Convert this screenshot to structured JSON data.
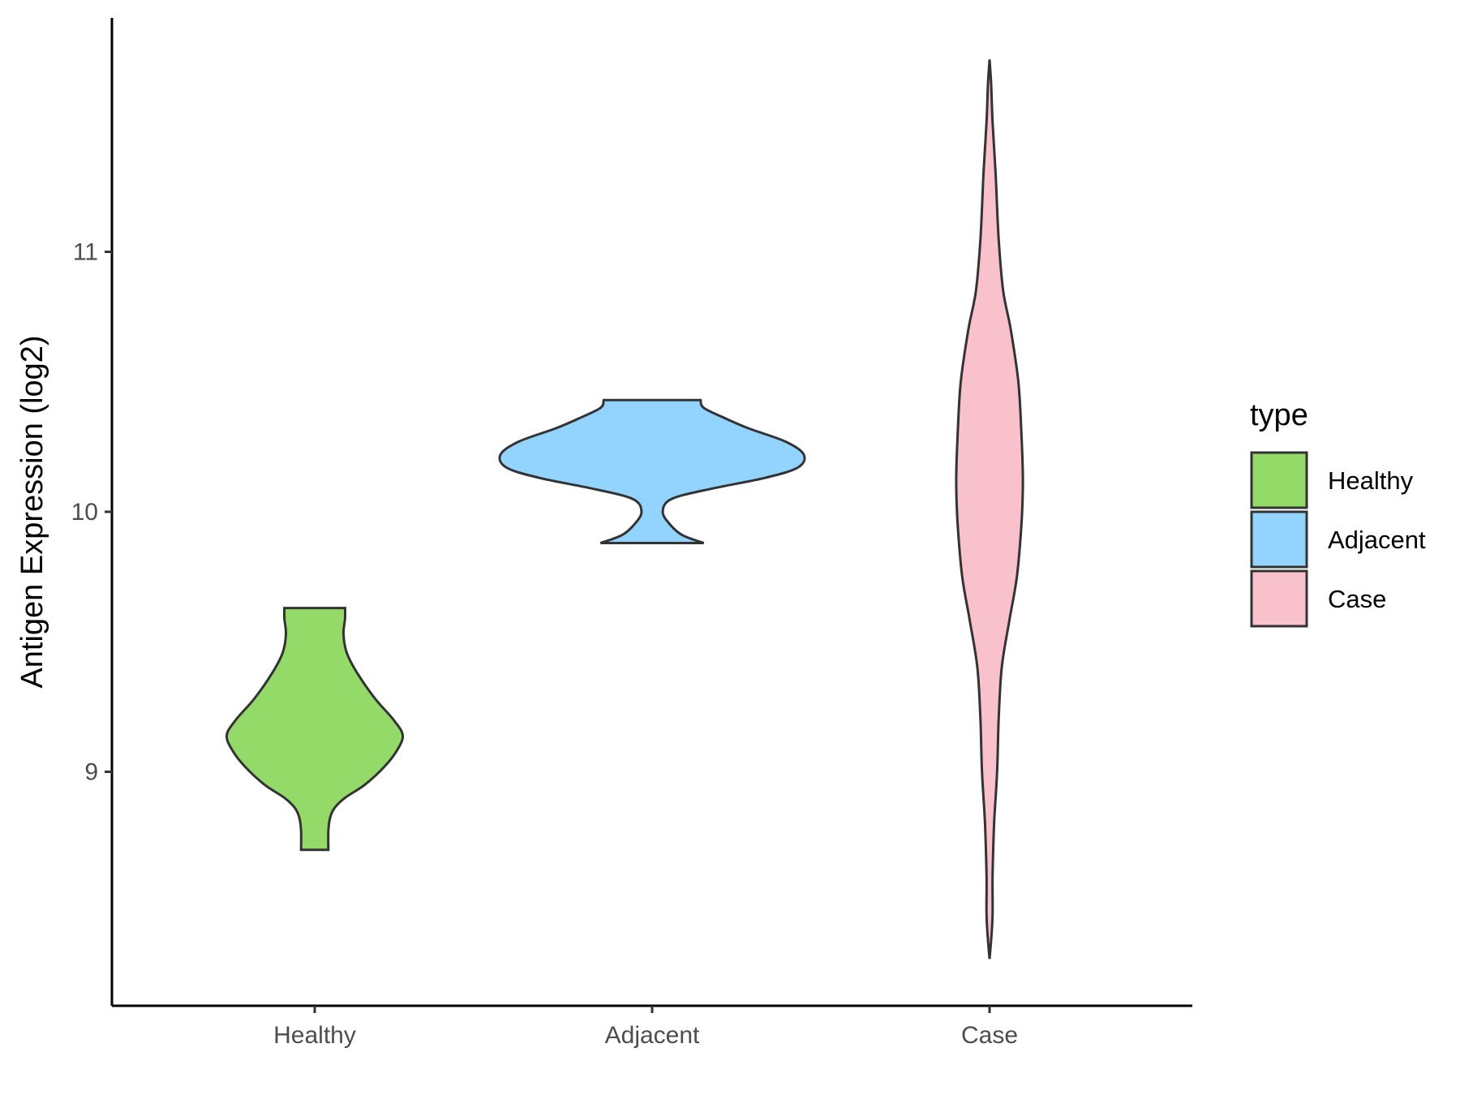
{
  "chart_data": {
    "type": "violin",
    "title": "",
    "xlabel": "",
    "ylabel": "Antigen Expression (log2)",
    "ylim": [
      8.1,
      11.9
    ],
    "y_ticks": [
      9,
      10,
      11
    ],
    "categories": [
      "Healthy",
      "Adjacent",
      "Case"
    ],
    "legend": {
      "title": "type",
      "position": "right",
      "entries": [
        "Healthy",
        "Adjacent",
        "Case"
      ]
    },
    "grid": false,
    "series": [
      {
        "name": "Healthy",
        "color": "#93da68",
        "min": 8.7,
        "max": 9.63,
        "density": [
          [
            8.7,
            0.09
          ],
          [
            8.77,
            0.09
          ],
          [
            8.82,
            0.1
          ],
          [
            8.86,
            0.13
          ],
          [
            8.9,
            0.2
          ],
          [
            8.95,
            0.33
          ],
          [
            9.02,
            0.46
          ],
          [
            9.08,
            0.54
          ],
          [
            9.14,
            0.58
          ],
          [
            9.2,
            0.52
          ],
          [
            9.28,
            0.4
          ],
          [
            9.38,
            0.28
          ],
          [
            9.46,
            0.21
          ],
          [
            9.53,
            0.19
          ],
          [
            9.59,
            0.2
          ],
          [
            9.63,
            0.2
          ]
        ]
      },
      {
        "name": "Adjacent",
        "color": "#93d4fe",
        "min": 9.88,
        "max": 10.43,
        "density": [
          [
            9.88,
            0.34
          ],
          [
            9.91,
            0.2
          ],
          [
            9.95,
            0.12
          ],
          [
            10.0,
            0.07
          ],
          [
            10.05,
            0.13
          ],
          [
            10.09,
            0.4
          ],
          [
            10.13,
            0.74
          ],
          [
            10.17,
            0.96
          ],
          [
            10.22,
            1.0
          ],
          [
            10.27,
            0.88
          ],
          [
            10.32,
            0.64
          ],
          [
            10.36,
            0.48
          ],
          [
            10.4,
            0.34
          ],
          [
            10.43,
            0.32
          ]
        ]
      },
      {
        "name": "Case",
        "color": "#f8c1cb",
        "min": 8.28,
        "max": 11.74,
        "density": [
          [
            8.28,
            0.0
          ],
          [
            8.35,
            0.01
          ],
          [
            8.45,
            0.02
          ],
          [
            8.6,
            0.02
          ],
          [
            8.8,
            0.03
          ],
          [
            9.0,
            0.05
          ],
          [
            9.2,
            0.06
          ],
          [
            9.4,
            0.08
          ],
          [
            9.58,
            0.13
          ],
          [
            9.75,
            0.18
          ],
          [
            9.95,
            0.21
          ],
          [
            10.12,
            0.22
          ],
          [
            10.3,
            0.21
          ],
          [
            10.5,
            0.19
          ],
          [
            10.7,
            0.14
          ],
          [
            10.85,
            0.09
          ],
          [
            11.05,
            0.06
          ],
          [
            11.3,
            0.04
          ],
          [
            11.5,
            0.02
          ],
          [
            11.65,
            0.01
          ],
          [
            11.74,
            0.0
          ]
        ]
      }
    ]
  }
}
